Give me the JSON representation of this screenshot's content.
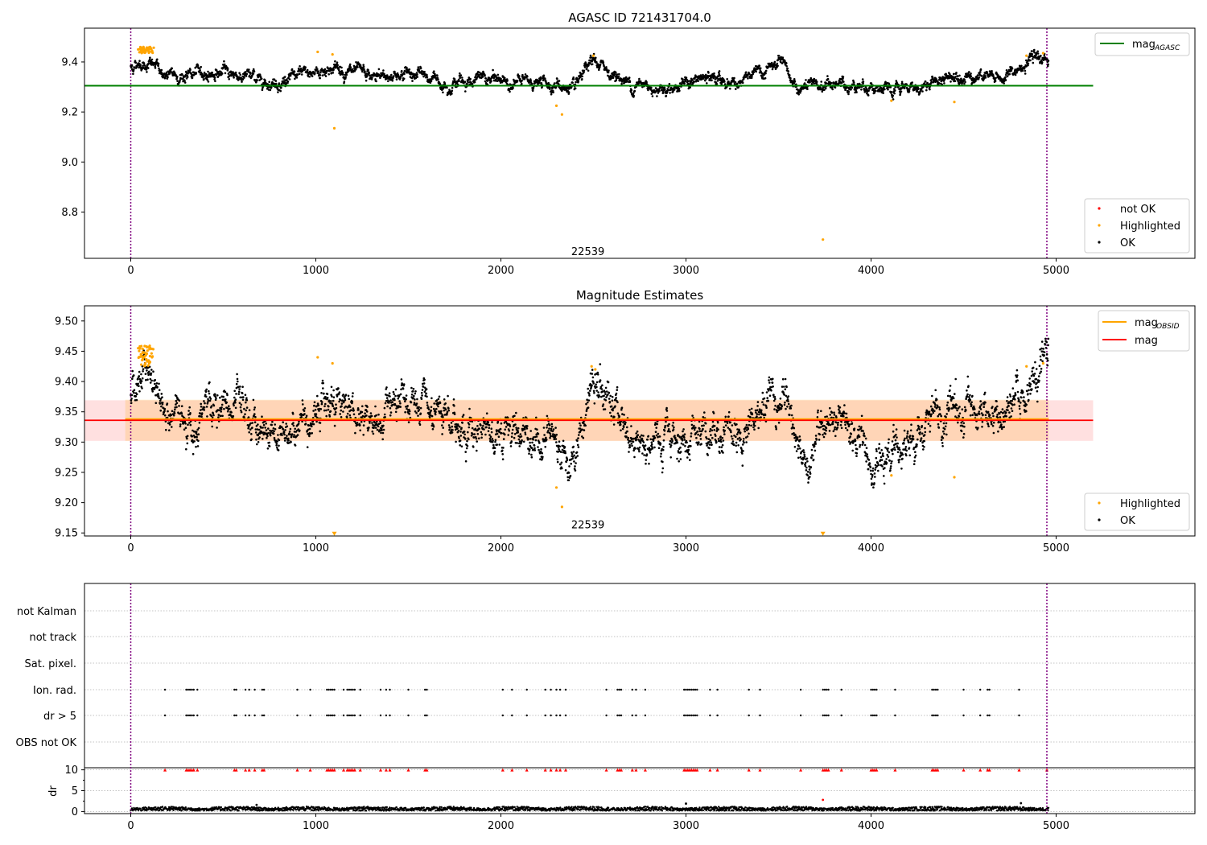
{
  "figure": {
    "panel1_title": "AGASC ID 721431704.0",
    "panel2_title": "Magnitude Estimates"
  },
  "chart_data": [
    {
      "type": "scatter",
      "title": "AGASC ID 721431704.0",
      "xlabel": "",
      "ylabel": "",
      "xlim": [
        -250,
        5750
      ],
      "ylim": [
        8.615,
        9.535
      ],
      "xticks": [
        0,
        1000,
        2000,
        3000,
        4000,
        5000
      ],
      "yticks": [
        8.8,
        9.0,
        9.2,
        9.4
      ],
      "ytick_labels": [
        "8.8",
        "9.0",
        "9.2",
        "9.4"
      ],
      "grid": false,
      "obsid_label": {
        "text": "22539",
        "x": 2470,
        "y": 8.64
      },
      "vlines": [
        0,
        4950
      ],
      "hline": {
        "name": "mag_AGASC",
        "y": 9.305,
        "x_range": [
          -250,
          5200
        ],
        "color": "#008000"
      },
      "legend_lines": [
        {
          "label": "mag",
          "sub": "AGASC",
          "color": "#008000"
        }
      ],
      "legend_points": [
        {
          "label": "not OK",
          "color": "#ff0000"
        },
        {
          "label": "Highlighted",
          "color": "#ffa500"
        },
        {
          "label": "OK",
          "color": "#000000"
        }
      ],
      "highlighted_points": [
        [
          40,
          9.45
        ],
        [
          55,
          9.455
        ],
        [
          70,
          9.44
        ],
        [
          85,
          9.45
        ],
        [
          100,
          9.44
        ],
        [
          115,
          9.445
        ],
        [
          1010,
          9.44
        ],
        [
          1090,
          9.43
        ],
        [
          1100,
          9.135
        ],
        [
          2300,
          9.225
        ],
        [
          2330,
          9.19
        ],
        [
          2500,
          9.425
        ],
        [
          3740,
          8.69
        ],
        [
          4110,
          9.245
        ],
        [
          4450,
          9.24
        ],
        [
          4840,
          9.425
        ],
        [
          4930,
          9.435
        ]
      ],
      "ok_series": {
        "x_range": [
          0,
          4960
        ],
        "base": 9.34,
        "baseline": [
          [
            0,
            9.38
          ],
          [
            50,
            9.4
          ],
          [
            120,
            9.39
          ],
          [
            200,
            9.34
          ],
          [
            500,
            9.36
          ],
          [
            800,
            9.32
          ],
          [
            1100,
            9.38
          ],
          [
            1300,
            9.33
          ],
          [
            1500,
            9.36
          ],
          [
            1700,
            9.32
          ],
          [
            1900,
            9.33
          ],
          [
            2100,
            9.32
          ],
          [
            2300,
            9.31
          ],
          [
            2400,
            9.28
          ],
          [
            2500,
            9.4
          ],
          [
            2700,
            9.31
          ],
          [
            2900,
            9.3
          ],
          [
            3100,
            9.33
          ],
          [
            3300,
            9.32
          ],
          [
            3500,
            9.39
          ],
          [
            3600,
            9.29
          ],
          [
            3800,
            9.31
          ],
          [
            4000,
            9.31
          ],
          [
            4100,
            9.27
          ],
          [
            4300,
            9.31
          ],
          [
            4500,
            9.36
          ],
          [
            4700,
            9.33
          ],
          [
            4900,
            9.41
          ],
          [
            4960,
            9.42
          ]
        ]
      }
    },
    {
      "type": "scatter",
      "title": "Magnitude Estimates",
      "xlabel": "",
      "ylabel": "",
      "xlim": [
        -250,
        5750
      ],
      "ylim": [
        9.145,
        9.525
      ],
      "xticks": [
        0,
        1000,
        2000,
        3000,
        4000,
        5000
      ],
      "yticks": [
        9.15,
        9.2,
        9.25,
        9.3,
        9.35,
        9.4,
        9.45,
        9.5
      ],
      "ytick_labels": [
        "9.15",
        "9.20",
        "9.25",
        "9.30",
        "9.35",
        "9.40",
        "9.45",
        "9.50"
      ],
      "grid": false,
      "obsid_label": {
        "text": "22539",
        "x": 2470,
        "y": 9.155
      },
      "vlines": [
        0,
        4950
      ],
      "mag_line": {
        "y": 9.336,
        "x_range": [
          -250,
          5200
        ],
        "color": "#ff0000"
      },
      "mag_band": {
        "y_range": [
          9.302,
          9.369
        ],
        "x_range": [
          -250,
          5200
        ]
      },
      "obsid_band": {
        "y_range": [
          9.302,
          9.37
        ],
        "x_range": [
          -30,
          4960
        ]
      },
      "obsid_line": {
        "y": 9.338,
        "x_range": [
          -30,
          4960
        ]
      },
      "legend_lines": [
        {
          "label": "mag",
          "sub": "OBSID",
          "color": "#ffa500"
        },
        {
          "label": "mag",
          "sub": "",
          "color": "#ff0000"
        }
      ],
      "legend_points": [
        {
          "label": "Highlighted",
          "color": "#ffa500"
        },
        {
          "label": "OK",
          "color": "#000000"
        }
      ],
      "highlighted_points": [
        [
          40,
          9.455
        ],
        [
          55,
          9.445
        ],
        [
          70,
          9.44
        ],
        [
          85,
          9.435
        ],
        [
          100,
          9.43
        ],
        [
          115,
          9.44
        ],
        [
          1010,
          9.44
        ],
        [
          1090,
          9.43
        ],
        [
          2300,
          9.225
        ],
        [
          2330,
          9.193
        ],
        [
          2490,
          9.425
        ],
        [
          2510,
          9.42
        ],
        [
          4110,
          9.245
        ],
        [
          4450,
          9.242
        ],
        [
          4840,
          9.425
        ],
        [
          4930,
          9.43
        ]
      ],
      "clipped_markers": [
        [
          1100,
          9.148
        ],
        [
          3740,
          9.148
        ]
      ],
      "ok_series": {
        "x_range": [
          0,
          4960
        ],
        "baseline": [
          [
            0,
            9.38
          ],
          [
            50,
            9.4
          ],
          [
            120,
            9.4
          ],
          [
            200,
            9.33
          ],
          [
            500,
            9.36
          ],
          [
            800,
            9.31
          ],
          [
            1100,
            9.38
          ],
          [
            1300,
            9.33
          ],
          [
            1500,
            9.36
          ],
          [
            1700,
            9.32
          ],
          [
            1900,
            9.33
          ],
          [
            2100,
            9.32
          ],
          [
            2300,
            9.31
          ],
          [
            2400,
            9.27
          ],
          [
            2500,
            9.4
          ],
          [
            2700,
            9.31
          ],
          [
            2900,
            9.29
          ],
          [
            3100,
            9.33
          ],
          [
            3300,
            9.32
          ],
          [
            3500,
            9.39
          ],
          [
            3600,
            9.28
          ],
          [
            3800,
            9.31
          ],
          [
            4000,
            9.3
          ],
          [
            4100,
            9.27
          ],
          [
            4300,
            9.32
          ],
          [
            4500,
            9.36
          ],
          [
            4700,
            9.33
          ],
          [
            4900,
            9.4
          ],
          [
            4960,
            9.42
          ]
        ]
      }
    },
    {
      "type": "scatter",
      "title": "",
      "xlabel": "",
      "xlim": [
        -250,
        5750
      ],
      "xticks": [
        0,
        1000,
        2000,
        3000,
        4000,
        5000
      ],
      "flag_labels": [
        "not Kalman",
        "not track",
        "Sat. pixel.",
        "Ion. rad.",
        "dr > 5",
        "OBS not OK"
      ],
      "flag_points": {
        "Ion. rad.": [
          185,
          300,
          310,
          320,
          330,
          340,
          360,
          560,
          570,
          620,
          640,
          670,
          710,
          720,
          900,
          970,
          1060,
          1070,
          1080,
          1090,
          1100,
          1150,
          1170,
          1180,
          1190,
          1200,
          1210,
          1240,
          1350,
          1380,
          1400,
          1500,
          1590,
          1600,
          2010,
          2060,
          2140,
          2240,
          2270,
          2300,
          2320,
          2350,
          2570,
          2630,
          2640,
          2650,
          2710,
          2730,
          2780,
          2990,
          3000,
          3010,
          3020,
          3030,
          3040,
          3050,
          3060,
          3130,
          3170,
          3340,
          3400,
          3620,
          3740,
          3750,
          3760,
          3770,
          3840,
          4000,
          4010,
          4020,
          4030,
          4130,
          4330,
          4340,
          4350,
          4360,
          4500,
          4590,
          4630,
          4640,
          4800
        ],
        "dr > 5": [
          185,
          300,
          310,
          320,
          330,
          340,
          360,
          560,
          570,
          620,
          640,
          670,
          710,
          720,
          900,
          970,
          1060,
          1070,
          1080,
          1090,
          1100,
          1150,
          1170,
          1180,
          1190,
          1200,
          1210,
          1240,
          1350,
          1380,
          1400,
          1500,
          1590,
          1600,
          2010,
          2060,
          2140,
          2240,
          2270,
          2300,
          2320,
          2350,
          2570,
          2630,
          2640,
          2650,
          2710,
          2730,
          2780,
          2990,
          3000,
          3010,
          3020,
          3030,
          3040,
          3050,
          3060,
          3130,
          3170,
          3340,
          3400,
          3620,
          3740,
          3750,
          3760,
          3770,
          3840,
          4000,
          4010,
          4020,
          4030,
          4130,
          4330,
          4340,
          4350,
          4360,
          4500,
          4590,
          4630,
          4640,
          4800
        ]
      },
      "dr_panel": {
        "ylabel": "dr",
        "ylim": [
          -0.5,
          10.5
        ],
        "yticks": [
          0,
          5,
          10
        ],
        "ytick_labels": [
          "0",
          "5",
          "10"
        ],
        "clipped_marker_positions": [
          185,
          300,
          310,
          320,
          330,
          340,
          360,
          560,
          570,
          620,
          640,
          670,
          710,
          720,
          900,
          970,
          1060,
          1070,
          1080,
          1090,
          1100,
          1150,
          1170,
          1180,
          1190,
          1200,
          1210,
          1240,
          1350,
          1380,
          1400,
          1500,
          1590,
          1600,
          2010,
          2060,
          2140,
          2240,
          2270,
          2300,
          2320,
          2350,
          2570,
          2630,
          2640,
          2650,
          2710,
          2730,
          2780,
          2990,
          3000,
          3010,
          3020,
          3030,
          3040,
          3050,
          3060,
          3130,
          3170,
          3340,
          3400,
          3620,
          3740,
          3750,
          3760,
          3770,
          3840,
          4000,
          4010,
          4020,
          4030,
          4130,
          4330,
          4340,
          4350,
          4360,
          4500,
          4590,
          4630,
          4640,
          4800,
          4950
        ],
        "outlier_points": [
          [
            3740,
            2.8
          ],
          [
            4810,
            2.0
          ],
          [
            3000,
            1.9
          ],
          [
            680,
            1.6
          ]
        ],
        "typical_dr": [
          0.2,
          1.2
        ]
      },
      "vlines": [
        0,
        4950
      ]
    }
  ]
}
